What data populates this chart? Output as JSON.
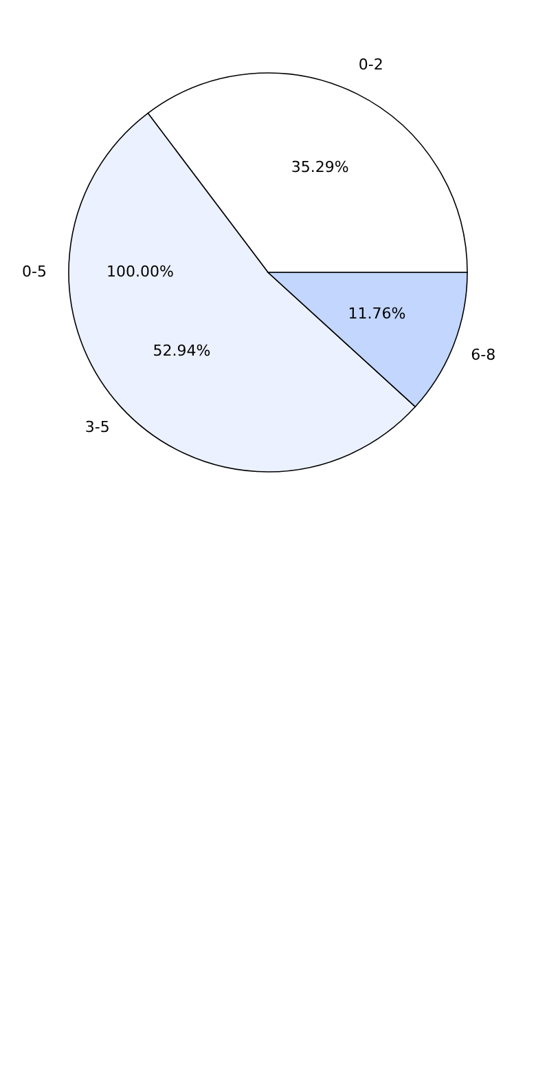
{
  "chart_data": {
    "type": "pie",
    "categories": [
      "0-2",
      "3-5",
      "6-8"
    ],
    "values": [
      35.29,
      52.94,
      11.76
    ],
    "value_labels": [
      "35.29%",
      "52.94%",
      "11.76%"
    ],
    "colors": [
      "#ffffff",
      "#ebf1fe",
      "#c2d6fe"
    ],
    "annotations": [
      "0-5",
      "100.00%"
    ],
    "legend": false
  }
}
